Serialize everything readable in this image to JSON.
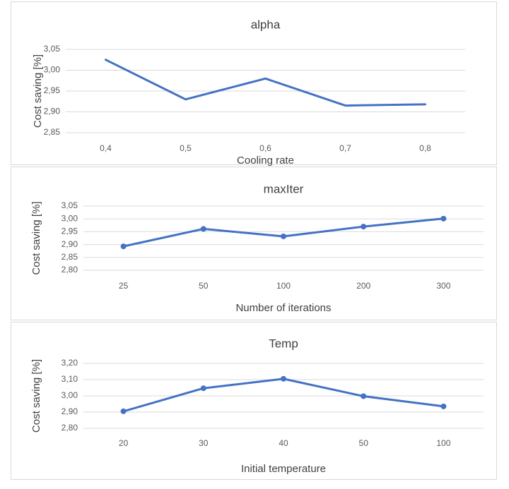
{
  "chart_data": [
    {
      "type": "line",
      "title": "alpha",
      "xlabel": "Cooling rate",
      "ylabel": "Cost saving [%]",
      "categories": [
        "0,4",
        "0,5",
        "0,6",
        "0,7",
        "0,8"
      ],
      "series": [
        {
          "values": [
            3.025,
            2.93,
            2.98,
            2.915,
            2.918
          ]
        }
      ],
      "markers": false,
      "ylim": [
        2.85,
        3.05
      ],
      "yticks": [
        "2,85",
        "2,90",
        "2,95",
        "3,00",
        "3,05"
      ],
      "grid": true,
      "legend": "none",
      "color": "#4472C4"
    },
    {
      "type": "line",
      "title": "maxIter",
      "xlabel": "Number of iterations",
      "ylabel": "Cost saving [%]",
      "categories": [
        "25",
        "50",
        "100",
        "200",
        "300"
      ],
      "series": [
        {
          "values": [
            2.893,
            2.961,
            2.932,
            2.97,
            3.001
          ]
        }
      ],
      "markers": true,
      "ylim": [
        2.8,
        3.05
      ],
      "yticks": [
        "2,80",
        "2,85",
        "2,90",
        "2,95",
        "3,00",
        "3,05"
      ],
      "grid": true,
      "legend": "none",
      "color": "#4472C4"
    },
    {
      "type": "line",
      "title": "Temp",
      "xlabel": "Initial temperature",
      "ylabel": "Cost saving [%]",
      "categories": [
        "20",
        "30",
        "40",
        "50",
        "100"
      ],
      "series": [
        {
          "values": [
            2.905,
            3.047,
            3.105,
            2.998,
            2.935
          ]
        }
      ],
      "markers": true,
      "ylim": [
        2.8,
        3.2
      ],
      "yticks": [
        "2,80",
        "2,90",
        "3,00",
        "3,10",
        "3,20"
      ],
      "grid": true,
      "legend": "none",
      "color": "#4472C4"
    }
  ]
}
